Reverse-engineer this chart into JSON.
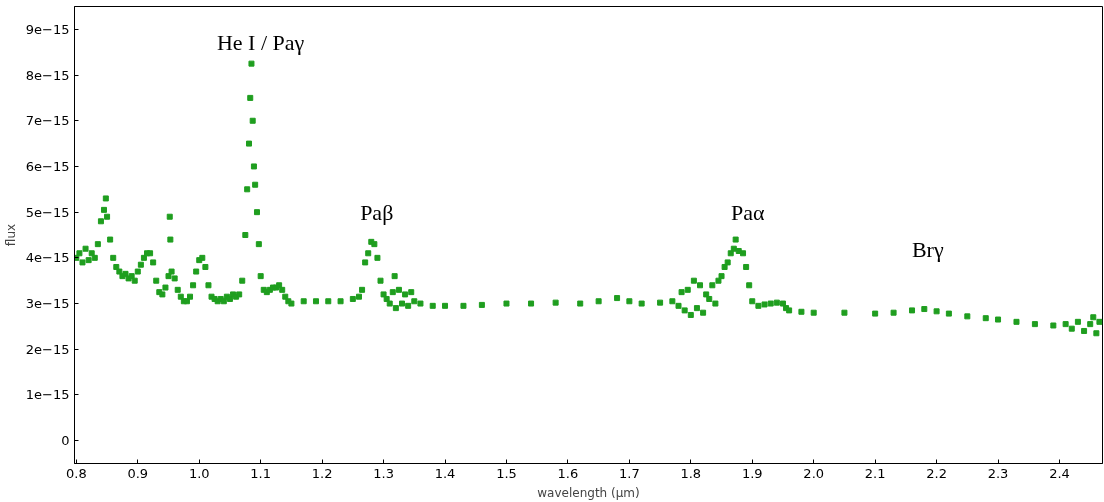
{
  "chart_data": {
    "type": "scatter",
    "xlabel": "wavelength (µm)",
    "ylabel": "flux",
    "xlim": [
      0.797,
      2.47
    ],
    "ylim": [
      -5e-16,
      9.5e-15
    ],
    "xticks": [
      0.8,
      0.9,
      {
        "value": 1,
        "label": "1.0"
      },
      1.1,
      1.2,
      1.3,
      1.4,
      1.5,
      1.6,
      1.7,
      1.8,
      1.9,
      {
        "value": 2,
        "label": "2.0"
      },
      2.1,
      2.2,
      2.3,
      2.4
    ],
    "yticks": [
      {
        "value": 0,
        "label": "0"
      },
      {
        "value": 1e-15,
        "label": "1e−15"
      },
      {
        "value": 2e-15,
        "label": "2e−15"
      },
      {
        "value": 3e-15,
        "label": "3e−15"
      },
      {
        "value": 4e-15,
        "label": "4e−15"
      },
      {
        "value": 5e-15,
        "label": "5e−15"
      },
      {
        "value": 6e-15,
        "label": "6e−15"
      },
      {
        "value": 7e-15,
        "label": "7e−15"
      },
      {
        "value": 8e-15,
        "label": "8e−15"
      },
      {
        "value": 9e-15,
        "label": "9e−15"
      }
    ],
    "grid": false,
    "marker": "square",
    "annotations": [
      "He I / Paγ",
      "Paβ",
      "Paα",
      "Brγ"
    ],
    "series": [
      {
        "color": "#1f9e1f",
        "x": [
          0.8,
          0.805,
          0.81,
          0.815,
          0.82,
          0.825,
          0.83,
          0.835,
          0.84,
          0.845,
          0.848,
          0.85,
          0.855,
          0.86,
          0.865,
          0.87,
          0.875,
          0.88,
          0.885,
          0.89,
          0.895,
          0.9,
          0.905,
          0.91,
          0.915,
          0.92,
          0.925,
          0.93,
          0.935,
          0.94,
          0.945,
          0.95,
          0.952,
          0.953,
          0.955,
          0.96,
          0.965,
          0.97,
          0.975,
          0.98,
          0.985,
          0.99,
          0.995,
          1.0,
          1.005,
          1.01,
          1.015,
          1.02,
          1.025,
          1.03,
          1.035,
          1.04,
          1.045,
          1.05,
          1.055,
          1.06,
          1.065,
          1.07,
          1.075,
          1.078,
          1.081,
          1.083,
          1.085,
          1.087,
          1.089,
          1.091,
          1.094,
          1.097,
          1.1,
          1.105,
          1.11,
          1.115,
          1.12,
          1.125,
          1.13,
          1.135,
          1.14,
          1.145,
          1.15,
          1.17,
          1.19,
          1.21,
          1.23,
          1.25,
          1.26,
          1.265,
          1.27,
          1.275,
          1.28,
          1.285,
          1.29,
          1.295,
          1.3,
          1.305,
          1.31,
          1.315,
          1.318,
          1.32,
          1.325,
          1.33,
          1.335,
          1.34,
          1.345,
          1.35,
          1.36,
          1.38,
          1.4,
          1.43,
          1.46,
          1.5,
          1.54,
          1.58,
          1.62,
          1.65,
          1.68,
          1.7,
          1.72,
          1.75,
          1.77,
          1.78,
          1.785,
          1.79,
          1.795,
          1.8,
          1.805,
          1.81,
          1.815,
          1.82,
          1.825,
          1.83,
          1.835,
          1.84,
          1.845,
          1.85,
          1.855,
          1.86,
          1.865,
          1.87,
          1.873,
          1.878,
          1.885,
          1.89,
          1.895,
          1.9,
          1.91,
          1.92,
          1.93,
          1.94,
          1.95,
          1.955,
          1.96,
          1.98,
          2.0,
          2.05,
          2.1,
          2.13,
          2.16,
          2.18,
          2.2,
          2.22,
          2.25,
          2.28,
          2.3,
          2.33,
          2.36,
          2.39,
          2.41,
          2.42,
          2.43,
          2.44,
          2.45,
          2.455,
          2.46,
          2.465
        ],
        "values": [
          4e-15,
          4.1e-15,
          3.9e-15,
          4.2e-15,
          3.95e-15,
          4.1e-15,
          4e-15,
          4.3e-15,
          4.8e-15,
          5.05e-15,
          5.3e-15,
          4.9e-15,
          4.4e-15,
          4e-15,
          3.8e-15,
          3.7e-15,
          3.6e-15,
          3.65e-15,
          3.55e-15,
          3.6e-15,
          3.5e-15,
          3.7e-15,
          3.85e-15,
          4e-15,
          4.1e-15,
          4.1e-15,
          3.9e-15,
          3.5e-15,
          3.25e-15,
          3.2e-15,
          3.35e-15,
          3.6e-15,
          4.9e-15,
          4.4e-15,
          3.7e-15,
          3.55e-15,
          3.3e-15,
          3.15e-15,
          3.05e-15,
          3.05e-15,
          3.15e-15,
          3.4e-15,
          3.7e-15,
          3.95e-15,
          4e-15,
          3.8e-15,
          3.4e-15,
          3.15e-15,
          3.1e-15,
          3.05e-15,
          3.1e-15,
          3.05e-15,
          3.15e-15,
          3.1e-15,
          3.2e-15,
          3.15e-15,
          3.2e-15,
          3.5e-15,
          4.5e-15,
          5.5e-15,
          6.5e-15,
          7.5e-15,
          8.25e-15,
          7e-15,
          6e-15,
          5.6e-15,
          5e-15,
          4.3e-15,
          3.6e-15,
          3.3e-15,
          3.25e-15,
          3.3e-15,
          3.35e-15,
          3.35e-15,
          3.4e-15,
          3.3e-15,
          3.15e-15,
          3.05e-15,
          3e-15,
          3.05e-15,
          3.05e-15,
          3.05e-15,
          3.05e-15,
          3.1e-15,
          3.15e-15,
          3.3e-15,
          3.9e-15,
          4.1e-15,
          4.35e-15,
          4.3e-15,
          4e-15,
          3.5e-15,
          3.2e-15,
          3.1e-15,
          3e-15,
          3.25e-15,
          3.6e-15,
          2.9e-15,
          3.3e-15,
          3e-15,
          3.2e-15,
          2.95e-15,
          3.25e-15,
          3.05e-15,
          3e-15,
          2.95e-15,
          2.95e-15,
          2.95e-15,
          2.97e-15,
          3e-15,
          3e-15,
          3.02e-15,
          3e-15,
          3.05e-15,
          3.12e-15,
          3.05e-15,
          3e-15,
          3.02e-15,
          3.05e-15,
          2.95e-15,
          3.25e-15,
          2.85e-15,
          3.3e-15,
          2.75e-15,
          3.5e-15,
          2.9e-15,
          3.4e-15,
          2.8e-15,
          3.2e-15,
          3.1e-15,
          3.4e-15,
          3e-15,
          3.5e-15,
          3.6e-15,
          3.8e-15,
          3.9e-15,
          4.1e-15,
          4.2e-15,
          4.4e-15,
          4.15e-15,
          4.1e-15,
          3.8e-15,
          3.4e-15,
          3.05e-15,
          2.95e-15,
          2.98e-15,
          3e-15,
          3.02e-15,
          3e-15,
          2.9e-15,
          2.85e-15,
          2.82e-15,
          2.8e-15,
          2.8e-15,
          2.78e-15,
          2.8e-15,
          2.85e-15,
          2.88e-15,
          2.83e-15,
          2.78e-15,
          2.72e-15,
          2.68e-15,
          2.65e-15,
          2.6e-15,
          2.55e-15,
          2.52e-15,
          2.55e-15,
          2.45e-15,
          2.6e-15,
          2.4e-15,
          2.55e-15,
          2.7e-15,
          2.35e-15,
          2.6e-15
        ]
      }
    ]
  }
}
